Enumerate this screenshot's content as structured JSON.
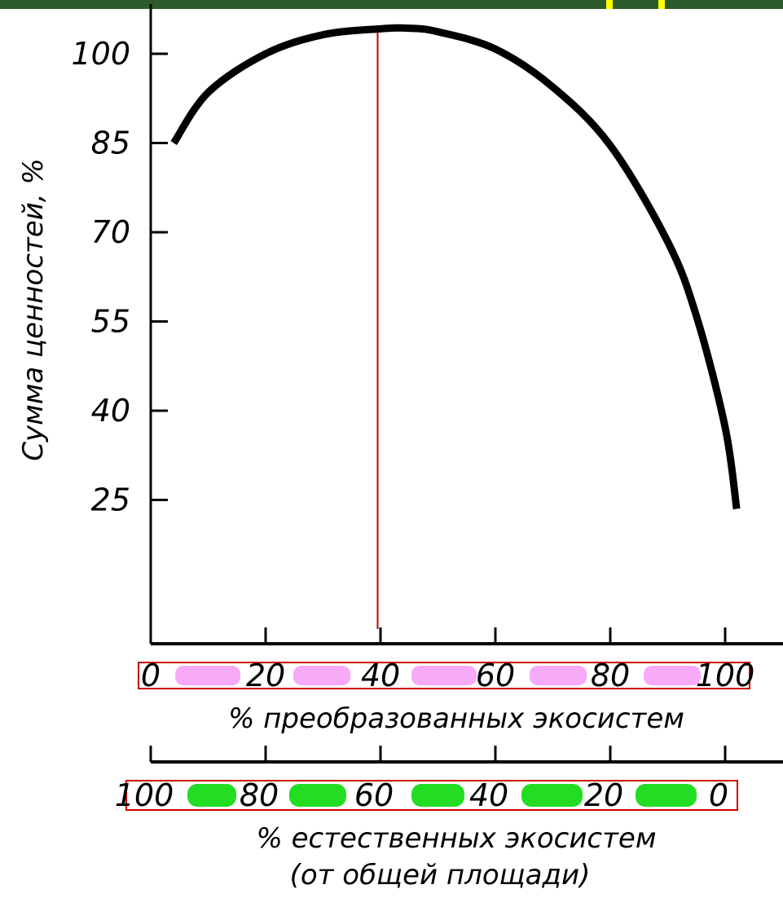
{
  "colors": {
    "header_bar": "#2b5a2b",
    "header_accent": "#ffff00",
    "curve": "#000000",
    "marker_line": "#cc0000",
    "box_outline": "#cc0000",
    "top_band_fill": "#f7aaf7",
    "bottom_band_fill": "#22dd22"
  },
  "chart_data": {
    "type": "line",
    "title": "",
    "ylabel": "Сумма ценностей, %",
    "xlabel": "% преобразованных экосистем",
    "xlabel2_line1": "% естественных экосистем",
    "xlabel2_line2": "(от общей площади)",
    "yticks": [
      "100",
      "85",
      "70",
      "55",
      "40",
      "25"
    ],
    "ytick_values": [
      100,
      85,
      70,
      55,
      40,
      25
    ],
    "xticks": [
      "0",
      "20",
      "40",
      "60",
      "80",
      "100"
    ],
    "xtick_values": [
      0,
      20,
      40,
      60,
      80,
      100
    ],
    "xticks2": [
      "100",
      "80",
      "60",
      "40",
      "20",
      "0"
    ],
    "xtick2_values": [
      0,
      20,
      40,
      60,
      80,
      100
    ],
    "xlim": [
      0,
      110
    ],
    "ylim": [
      0,
      108
    ],
    "grid": false,
    "series": [
      {
        "x": [
          4,
          10,
          20,
          30,
          40,
          45,
          50,
          60,
          70,
          80,
          90,
          95,
          100,
          102
        ],
        "y": [
          85,
          93.5,
          100,
          103.2,
          104.2,
          104.3,
          103.7,
          100.8,
          94.4,
          84.6,
          68.4,
          55.9,
          37.2,
          23.5
        ]
      }
    ],
    "marker_x": 39.5
  }
}
